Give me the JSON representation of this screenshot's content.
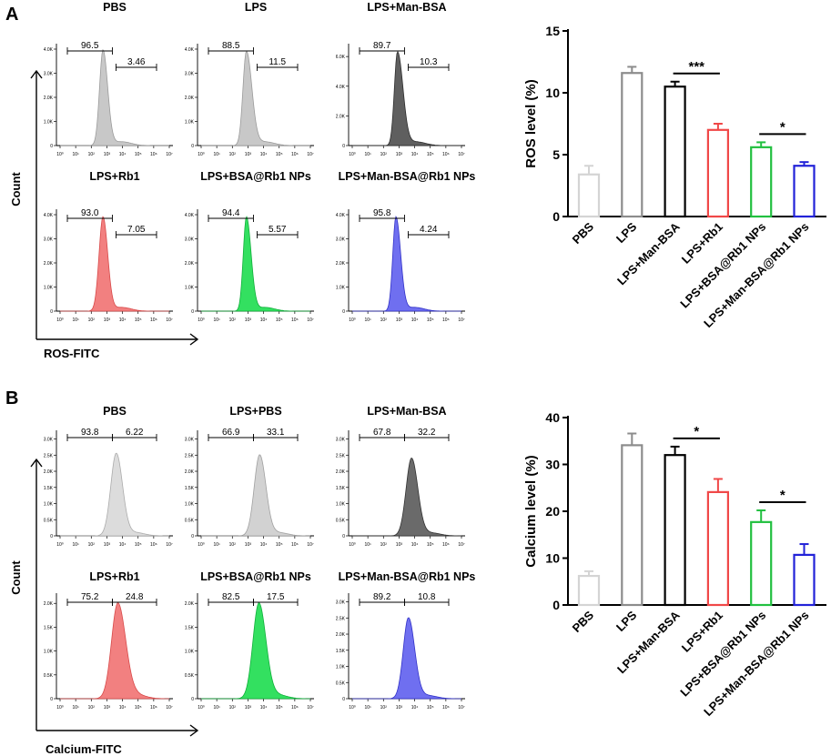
{
  "figure": {
    "panels": [
      {
        "letter": "A",
        "flow_xlabel": "ROS-FITC",
        "flow_ylabel": "Count",
        "xticks": [
          "10⁰",
          "10¹",
          "10²",
          "10³",
          "10⁴",
          "10⁵",
          "10⁶",
          "10⁷"
        ],
        "flow": [
          {
            "title": "PBS",
            "left_pct": "96.5",
            "right_pct": "3.46",
            "yticks": [
              "0",
              "1.0K",
              "2.0K",
              "3.0K",
              "4.0K"
            ],
            "ymax": 4,
            "peak_decade": 2.75,
            "peak_height": 3.95,
            "left_w": 0.22,
            "right_w": 0.3,
            "color": "#c8c8c8",
            "stroke": "#9b9b9b"
          },
          {
            "title": "LPS",
            "left_pct": "88.5",
            "right_pct": "11.5",
            "yticks": [
              "0",
              "1.0K",
              "2.0K",
              "3.0K",
              "4.0K"
            ],
            "ymax": 4,
            "peak_decade": 2.9,
            "peak_height": 3.9,
            "left_w": 0.22,
            "right_w": 0.35,
            "color": "#c8c8c8",
            "stroke": "#9b9b9b"
          },
          {
            "title": "LPS+Man-BSA",
            "left_pct": "89.7",
            "right_pct": "10.3",
            "yticks": [
              "0",
              "2.0K",
              "4.0K",
              "6.0K"
            ],
            "ymax": 6.5,
            "peak_decade": 2.9,
            "peak_height": 6.3,
            "left_w": 0.2,
            "right_w": 0.35,
            "color": "#5f5f5f",
            "stroke": "#2e2e2e"
          },
          {
            "title": "LPS+Rb1",
            "left_pct": "93.0",
            "right_pct": "7.05",
            "yticks": [
              "0",
              "1.0K",
              "2.0K",
              "3.0K",
              "4.0K"
            ],
            "ymax": 4,
            "peak_decade": 2.75,
            "peak_height": 3.9,
            "left_w": 0.25,
            "right_w": 0.3,
            "color": "#f28080",
            "stroke": "#d84a4a"
          },
          {
            "title": "LPS+BSA@Rb1 NPs",
            "left_pct": "94.4",
            "right_pct": "5.57",
            "yticks": [
              "0",
              "1.0K",
              "2.0K",
              "3.0K",
              "4.0K"
            ],
            "ymax": 4,
            "peak_decade": 2.9,
            "peak_height": 3.9,
            "left_w": 0.2,
            "right_w": 0.3,
            "color": "#33e060",
            "stroke": "#12b03c"
          },
          {
            "title": "LPS+Man-BSA@Rb1 NPs",
            "left_pct": "95.8",
            "right_pct": "4.24",
            "yticks": [
              "0",
              "1.0K",
              "2.0K",
              "3.0K",
              "4.0K"
            ],
            "ymax": 4,
            "peak_decade": 2.8,
            "peak_height": 3.9,
            "left_w": 0.2,
            "right_w": 0.3,
            "color": "#6f6ff0",
            "stroke": "#3232c8"
          }
        ]
      },
      {
        "letter": "B",
        "flow_xlabel": "Calcium-FITC",
        "flow_ylabel": "Count",
        "xticks": [
          "10⁰",
          "10¹",
          "10²",
          "10³",
          "10⁴",
          "10⁵",
          "10⁶",
          "10⁷"
        ],
        "flow": [
          {
            "title": "PBS",
            "left_pct": "93.8",
            "right_pct": "6.22",
            "yticks": [
              "0",
              "0.5K",
              "1.0K",
              "1.5K",
              "2.0K",
              "2.5K",
              "3.0K"
            ],
            "ymax": 3.1,
            "peak_decade": 3.6,
            "peak_height": 2.55,
            "left_w": 0.35,
            "right_w": 0.4,
            "color": "#dcdcdc",
            "stroke": "#ababab"
          },
          {
            "title": "LPS+PBS",
            "left_pct": "66.9",
            "right_pct": "33.1",
            "yticks": [
              "0",
              "0.5K",
              "1.0K",
              "1.5K",
              "2.0K",
              "2.5K",
              "3.0K"
            ],
            "ymax": 3.1,
            "peak_decade": 3.75,
            "peak_height": 2.5,
            "left_w": 0.35,
            "right_w": 0.4,
            "color": "#d2d2d2",
            "stroke": "#a0a0a0"
          },
          {
            "title": "LPS+Man-BSA",
            "left_pct": "67.8",
            "right_pct": "32.2",
            "yticks": [
              "0",
              "0.5K",
              "1.0K",
              "1.5K",
              "2.0K",
              "2.5K",
              "3.0K"
            ],
            "ymax": 3.1,
            "peak_decade": 3.8,
            "peak_height": 2.4,
            "left_w": 0.35,
            "right_w": 0.4,
            "color": "#6a6a6a",
            "stroke": "#333333"
          },
          {
            "title": "LPS+Rb1",
            "left_pct": "75.2",
            "right_pct": "24.8",
            "yticks": [
              "0",
              "0.5K",
              "1.0K",
              "1.5K",
              "2.0K"
            ],
            "ymax": 2.1,
            "peak_decade": 3.7,
            "peak_height": 2.0,
            "left_w": 0.4,
            "right_w": 0.5,
            "color": "#f28080",
            "stroke": "#d84a4a"
          },
          {
            "title": "LPS+BSA@Rb1 NPs",
            "left_pct": "82.5",
            "right_pct": "17.5",
            "yticks": [
              "0",
              "0.5K",
              "1.0K",
              "1.5K",
              "2.0K"
            ],
            "ymax": 2.1,
            "peak_decade": 3.7,
            "peak_height": 2.0,
            "left_w": 0.38,
            "right_w": 0.45,
            "color": "#33e060",
            "stroke": "#12b03c"
          },
          {
            "title": "LPS+Man-BSA@Rb1 NPs",
            "left_pct": "89.2",
            "right_pct": "10.8",
            "yticks": [
              "0",
              "0.5K",
              "1.0K",
              "1.5K",
              "2.0K",
              "2.5K",
              "3.0K"
            ],
            "ymax": 3.1,
            "peak_decade": 3.6,
            "peak_height": 2.5,
            "left_w": 0.33,
            "right_w": 0.4,
            "color": "#6f6ff0",
            "stroke": "#3232c8"
          }
        ]
      }
    ]
  },
  "chart_data": [
    {
      "type": "bar",
      "title": "",
      "xlabel": "",
      "ylabel": "ROS level (%)",
      "ylim": [
        0,
        15
      ],
      "yticks": [
        0,
        5,
        10,
        15
      ],
      "categories": [
        "PBS",
        "LPS",
        "LPS+Man-BSA",
        "LPS+Rb1",
        "LPS+BSA@Rb1 NPs",
        "LPS+Man-BSA@Rb1 NPs"
      ],
      "values": [
        3.4,
        11.6,
        10.5,
        7.0,
        5.6,
        4.1
      ],
      "errors": [
        0.7,
        0.5,
        0.4,
        0.5,
        0.4,
        0.3
      ],
      "colors": [
        "#d4d4d4",
        "#8c8c8c",
        "#000000",
        "#f04848",
        "#22c040",
        "#2222d8"
      ],
      "significance": [
        {
          "from": 2,
          "to": 3,
          "label": "***"
        },
        {
          "from": 4,
          "to": 5,
          "label": "*"
        }
      ]
    },
    {
      "type": "bar",
      "title": "",
      "xlabel": "",
      "ylabel": "Calcium level (%)",
      "ylim": [
        0,
        40
      ],
      "yticks": [
        0,
        10,
        20,
        30,
        40
      ],
      "categories": [
        "PBS",
        "LPS",
        "LPS+Man-BSA",
        "LPS+Rb1",
        "LPS+BSA@Rb1 NPs",
        "LPS+Man-BSA@Rb1 NPs"
      ],
      "values": [
        6.2,
        34.1,
        32.0,
        24.1,
        17.7,
        10.7
      ],
      "errors": [
        1.0,
        2.5,
        1.8,
        2.8,
        2.5,
        2.3
      ],
      "colors": [
        "#d4d4d4",
        "#8c8c8c",
        "#000000",
        "#f04848",
        "#22c040",
        "#2222d8"
      ],
      "significance": [
        {
          "from": 2,
          "to": 3,
          "label": "*"
        },
        {
          "from": 4,
          "to": 5,
          "label": "*"
        }
      ]
    }
  ]
}
